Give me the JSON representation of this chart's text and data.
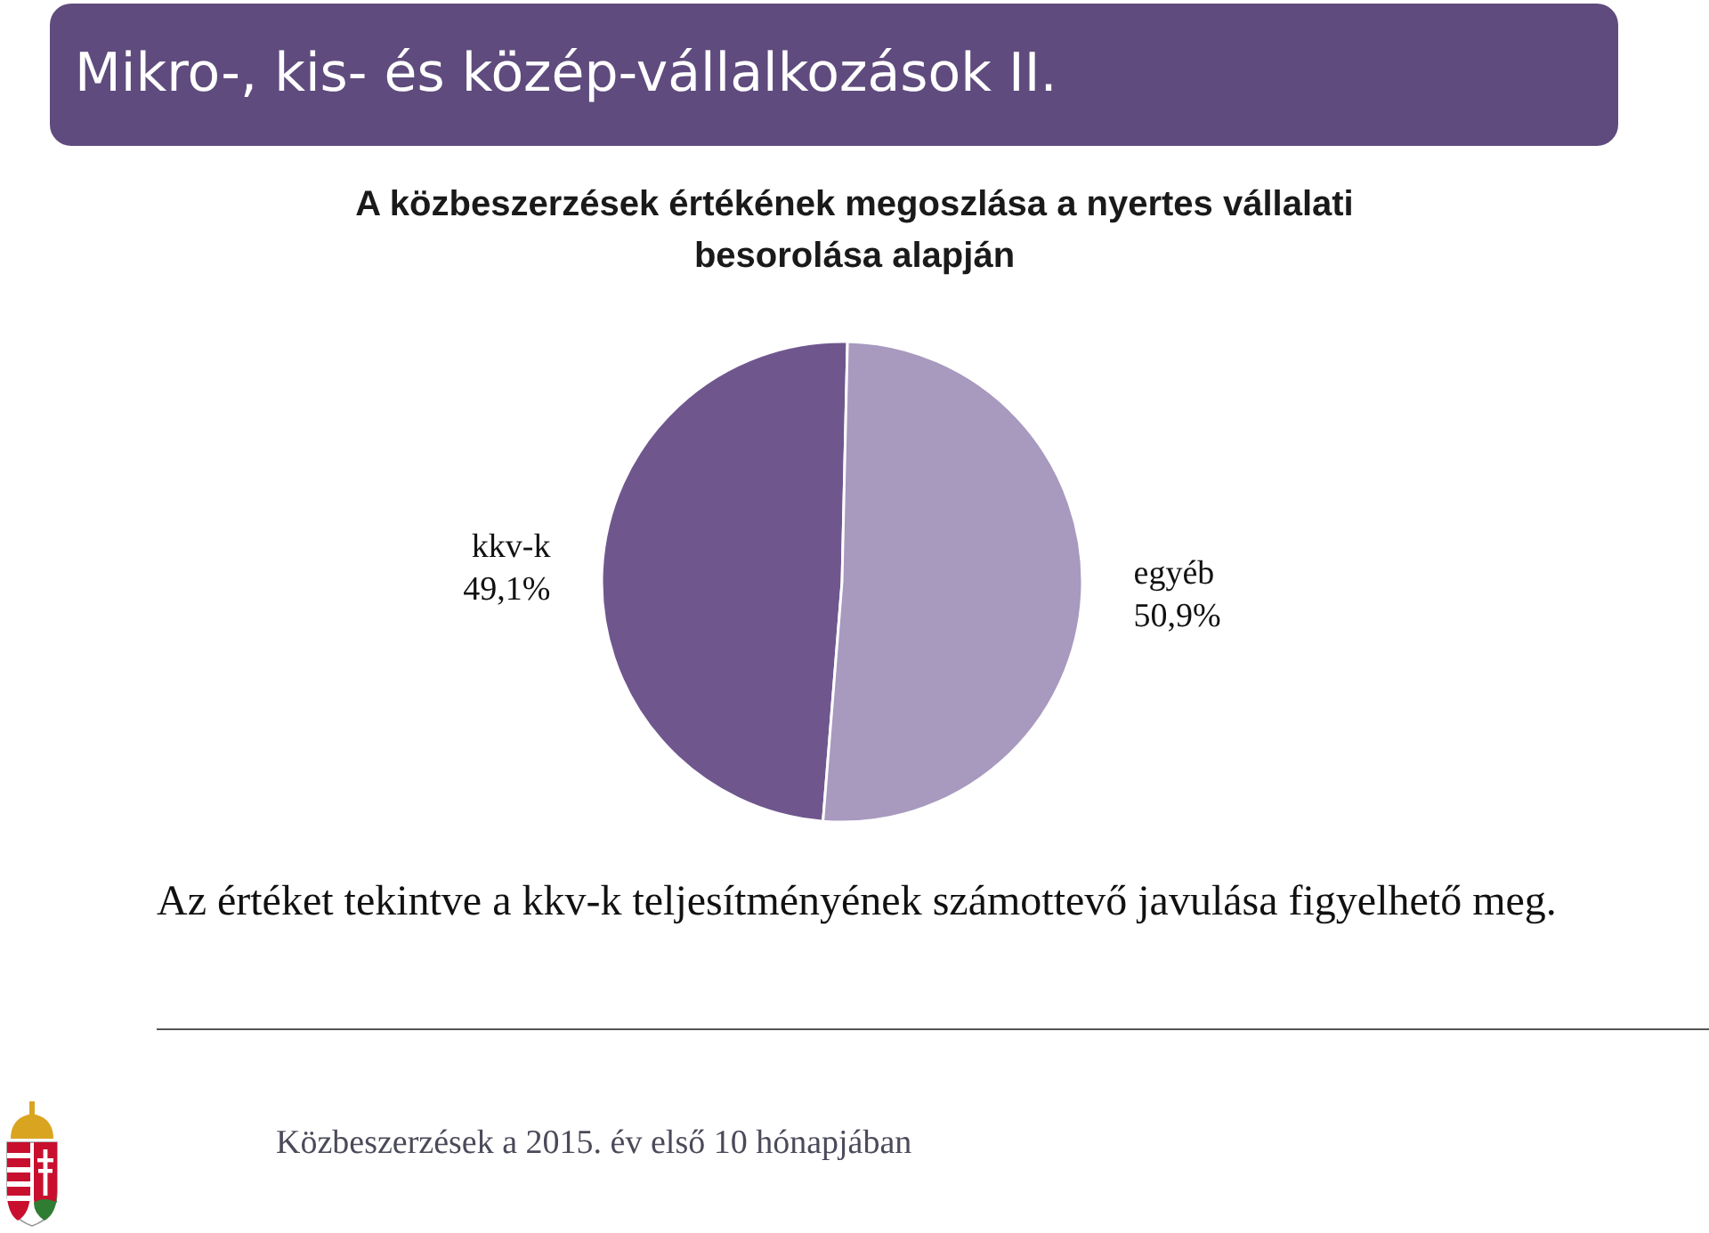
{
  "chart_data": {
    "type": "pie",
    "title": "Mikro-, kis- és közép-vállalkozások II.",
    "subtitle": "A közbeszerzések értékének megoszlása a nyertes vállalati besorolása alapján",
    "categories": [
      "kkv-k",
      "egyéb"
    ],
    "values": [
      49.1,
      50.9
    ],
    "colors": [
      "#6f578e",
      "#a899bf"
    ],
    "value_labels": [
      "49,1%",
      "50,9%"
    ],
    "annotations": [
      "Az értéket tekintve a kkv-k teljesítményének számottevő javulása figyelhető meg.",
      "Közbeszerzések a 2015. év első 10 hónapjában"
    ]
  }
}
